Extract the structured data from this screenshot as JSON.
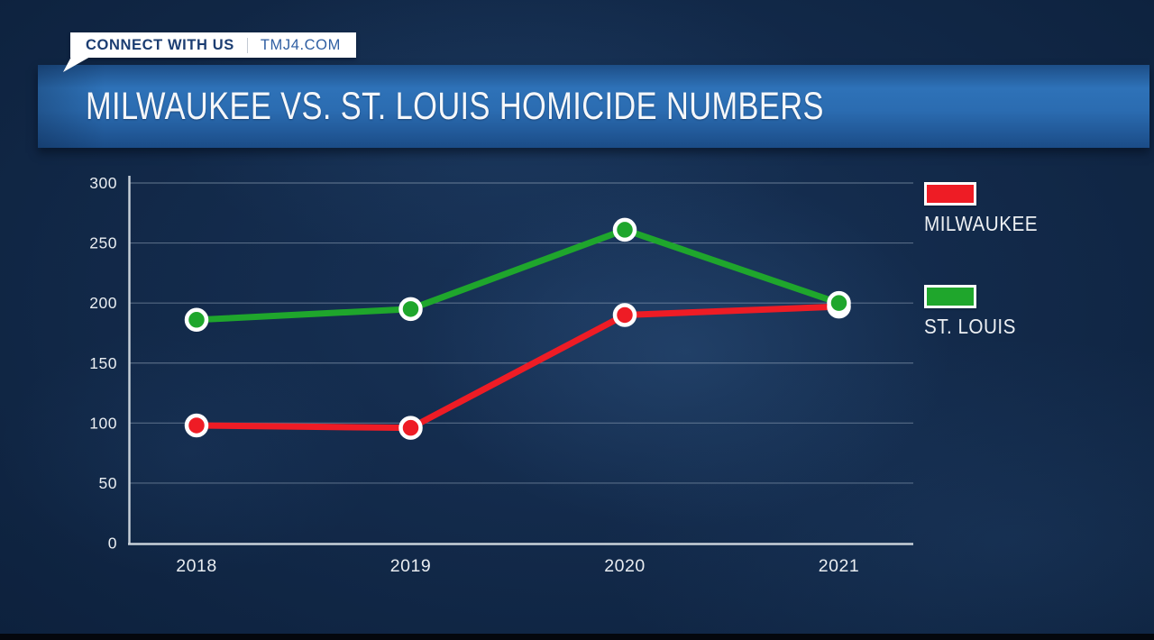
{
  "banner": {
    "connect_label": "CONNECT WITH US",
    "site_label": "TMJ4.COM"
  },
  "header": {
    "title": "MILWAUKEE VS. ST. LOUIS HOMICIDE NUMBERS"
  },
  "chart_data": {
    "type": "line",
    "title": "MILWAUKEE VS. ST. LOUIS HOMICIDE NUMBERS",
    "categories": [
      "2018",
      "2019",
      "2020",
      "2021"
    ],
    "series": [
      {
        "name": "MILWAUKEE",
        "color": "#ee1c25",
        "values": [
          98,
          96,
          190,
          197
        ]
      },
      {
        "name": "ST. LOUIS",
        "color": "#1fa62c",
        "values": [
          186,
          195,
          261,
          200
        ]
      }
    ],
    "ylim": [
      0,
      300
    ],
    "ytick_step": 50,
    "grid": true,
    "legend_position": "right",
    "xlabel": "",
    "ylabel": ""
  },
  "colors": {
    "axis": "#c9d2da",
    "grid": "#a8b9c9",
    "tick_label": "#e9edf1",
    "background": "#122846",
    "band_blue": "#2b6cb1",
    "milwaukee_red": "#ee1c25",
    "st_louis_green": "#1fa62c"
  }
}
